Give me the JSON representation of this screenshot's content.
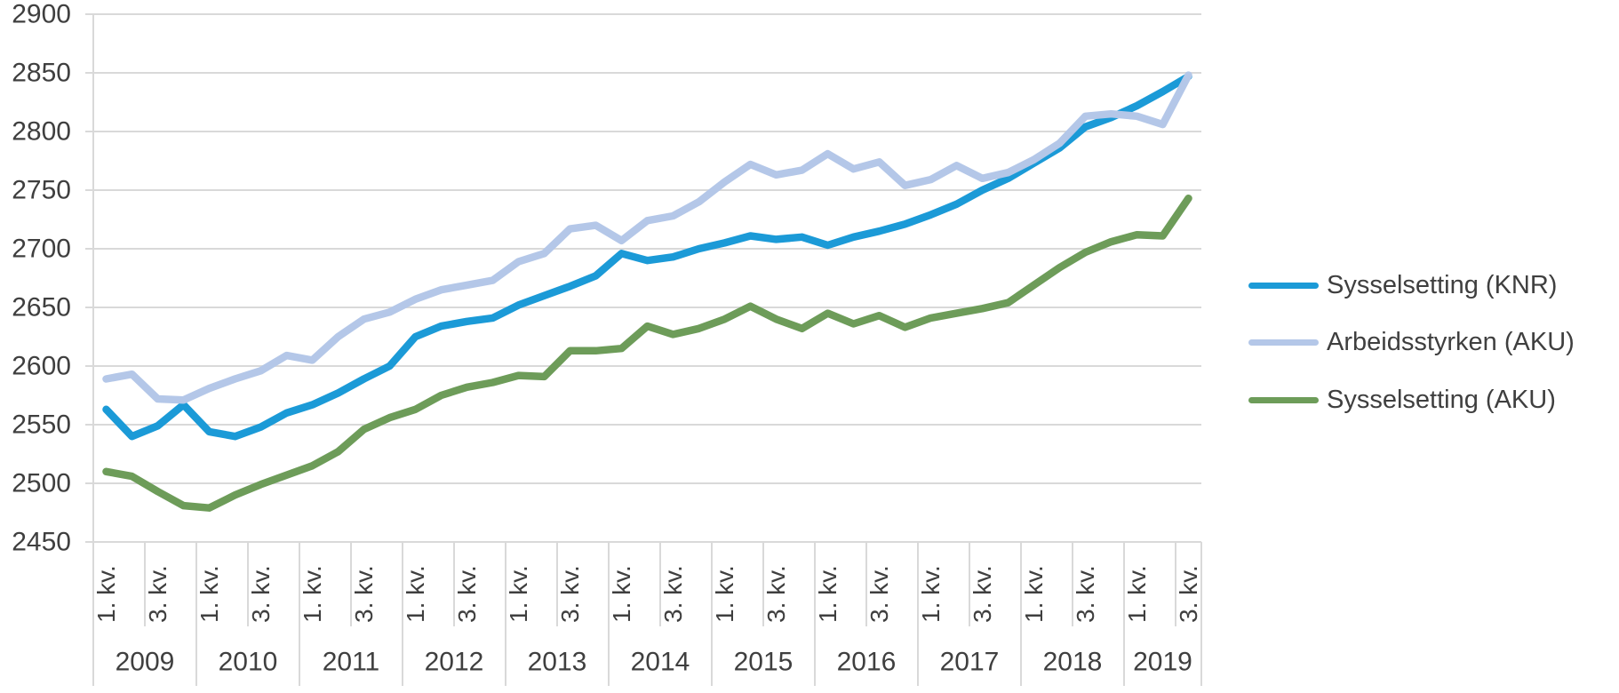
{
  "chart_data": {
    "type": "line",
    "title": "",
    "unit_note": "",
    "grid": {
      "color": "#d9d9d9",
      "horizontal": true,
      "vertical": false
    },
    "text_color": "#3f3f3f",
    "y_axis": {
      "min": 2450,
      "max": 2900,
      "step": 50,
      "tick_labels": [
        "2900",
        "2850",
        "2800",
        "2750",
        "2700",
        "2650",
        "2600",
        "2550",
        "2500",
        "2450"
      ]
    },
    "x_axis": {
      "quarter_label_texts": [
        "1. kv.",
        "3. kv."
      ],
      "labeled_quarter_offsets": [
        0,
        2
      ],
      "years": [
        {
          "label": "2009",
          "quarters": 4
        },
        {
          "label": "2010",
          "quarters": 4
        },
        {
          "label": "2011",
          "quarters": 4
        },
        {
          "label": "2012",
          "quarters": 4
        },
        {
          "label": "2013",
          "quarters": 4
        },
        {
          "label": "2014",
          "quarters": 4
        },
        {
          "label": "2015",
          "quarters": 4
        },
        {
          "label": "2016",
          "quarters": 4
        },
        {
          "label": "2017",
          "quarters": 4
        },
        {
          "label": "2018",
          "quarters": 4
        },
        {
          "label": "2019",
          "quarters": 3
        }
      ]
    },
    "legend_position": "right",
    "series": [
      {
        "name": "Sysselsetting (KNR)",
        "color": "#1b9ad7",
        "values": [
          2563,
          2540,
          2549,
          2567,
          2544,
          2540,
          2548,
          2560,
          2567,
          2577,
          2589,
          2600,
          2625,
          2634,
          2638,
          2641,
          2652,
          2660,
          2668,
          2677,
          2696,
          2690,
          2693,
          2700,
          2705,
          2711,
          2708,
          2710,
          2703,
          2710,
          2715,
          2721,
          2729,
          2738,
          2750,
          2760,
          2773,
          2786,
          2804,
          2812,
          2822,
          2834,
          2847
        ]
      },
      {
        "name": "Arbeidsstyrken (AKU)",
        "color": "#b4c7e8",
        "values": [
          2589,
          2593,
          2572,
          2571,
          2581,
          2589,
          2596,
          2609,
          2605,
          2625,
          2640,
          2646,
          2657,
          2665,
          2669,
          2673,
          2689,
          2696,
          2717,
          2720,
          2707,
          2724,
          2728,
          2740,
          2757,
          2772,
          2763,
          2767,
          2781,
          2768,
          2774,
          2754,
          2759,
          2771,
          2760,
          2765,
          2776,
          2790,
          2813,
          2815,
          2813,
          2806,
          2848
        ]
      },
      {
        "name": "Sysselsetting (AKU)",
        "color": "#6d9c59",
        "values": [
          2510,
          2506,
          2493,
          2481,
          2479,
          2490,
          2499,
          2507,
          2515,
          2527,
          2546,
          2556,
          2563,
          2575,
          2582,
          2586,
          2592,
          2591,
          2613,
          2613,
          2615,
          2634,
          2627,
          2632,
          2640,
          2651,
          2640,
          2632,
          2645,
          2636,
          2643,
          2633,
          2641,
          2645,
          2649,
          2654,
          2669,
          2684,
          2697,
          2706,
          2712,
          2711,
          2743
        ]
      }
    ]
  }
}
